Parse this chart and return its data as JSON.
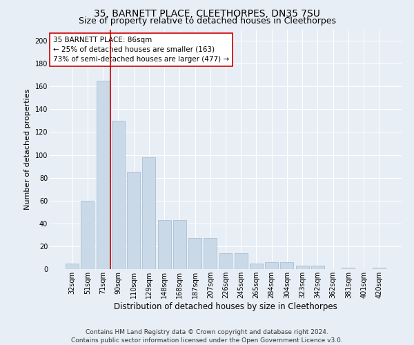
{
  "title1": "35, BARNETT PLACE, CLEETHORPES, DN35 7SU",
  "title2": "Size of property relative to detached houses in Cleethorpes",
  "xlabel": "Distribution of detached houses by size in Cleethorpes",
  "ylabel": "Number of detached properties",
  "categories": [
    "32sqm",
    "51sqm",
    "71sqm",
    "90sqm",
    "110sqm",
    "129sqm",
    "148sqm",
    "168sqm",
    "187sqm",
    "207sqm",
    "226sqm",
    "245sqm",
    "265sqm",
    "284sqm",
    "304sqm",
    "323sqm",
    "342sqm",
    "362sqm",
    "381sqm",
    "401sqm",
    "420sqm"
  ],
  "values": [
    5,
    60,
    165,
    130,
    85,
    98,
    43,
    43,
    27,
    27,
    14,
    14,
    5,
    6,
    6,
    3,
    3,
    0,
    1,
    0,
    1
  ],
  "bar_color": "#c9d9e8",
  "bar_edge_color": "#a0b8cc",
  "vline_x": 2.5,
  "vline_color": "#cc0000",
  "annotation_text": "35 BARNETT PLACE: 86sqm\n← 25% of detached houses are smaller (163)\n73% of semi-detached houses are larger (477) →",
  "annotation_box_color": "#ffffff",
  "annotation_box_edge": "#cc0000",
  "ylim": [
    0,
    210
  ],
  "yticks": [
    0,
    20,
    40,
    60,
    80,
    100,
    120,
    140,
    160,
    180,
    200
  ],
  "bg_color": "#e8eef5",
  "plot_bg": "#e8eef5",
  "grid_color": "#ffffff",
  "footer": "Contains HM Land Registry data © Crown copyright and database right 2024.\nContains public sector information licensed under the Open Government Licence v3.0.",
  "title1_fontsize": 10,
  "title2_fontsize": 9,
  "xlabel_fontsize": 8.5,
  "ylabel_fontsize": 8,
  "tick_fontsize": 7,
  "footer_fontsize": 6.5,
  "annotation_fontsize": 7.5
}
